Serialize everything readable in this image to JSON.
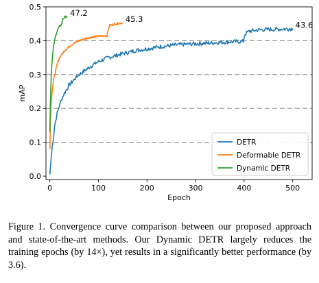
{
  "chart_data": {
    "type": "line",
    "xlabel": "Epoch",
    "ylabel": "mAP",
    "xlim": [
      -8,
      540
    ],
    "ylim": [
      -0.01,
      0.5
    ],
    "xticks": [
      0,
      100,
      200,
      300,
      400,
      500
    ],
    "yticks": [
      0.0,
      0.1,
      0.2,
      0.3,
      0.4,
      0.5
    ],
    "ytick_labels": [
      "0.0",
      "0.1",
      "0.2",
      "0.3",
      "0.4",
      "0.5"
    ],
    "grid": "horizontal dashed at 0.1, 0.2, 0.3, 0.4",
    "legend_position": "bottom-right",
    "series": [
      {
        "name": "DETR",
        "color": "#1f77b4",
        "end_label": "43.6",
        "x": [
          0,
          2,
          5,
          8,
          10,
          15,
          20,
          25,
          30,
          40,
          50,
          60,
          70,
          80,
          90,
          100,
          120,
          140,
          160,
          180,
          200,
          225,
          250,
          275,
          300,
          325,
          350,
          375,
          398,
          400,
          402,
          410,
          430,
          450,
          470,
          490,
          500
        ],
        "y": [
          0.005,
          0.04,
          0.09,
          0.12,
          0.15,
          0.185,
          0.21,
          0.23,
          0.245,
          0.27,
          0.285,
          0.3,
          0.31,
          0.32,
          0.33,
          0.338,
          0.35,
          0.358,
          0.365,
          0.372,
          0.376,
          0.382,
          0.386,
          0.389,
          0.391,
          0.393,
          0.395,
          0.397,
          0.398,
          0.41,
          0.42,
          0.428,
          0.432,
          0.433,
          0.434,
          0.435,
          0.436
        ]
      },
      {
        "name": "Deformable DETR",
        "color": "#ff7f0e",
        "end_label": "45.3",
        "x": [
          0,
          1,
          2,
          4,
          6,
          8,
          10,
          15,
          20,
          25,
          30,
          40,
          50,
          60,
          70,
          80,
          90,
          100,
          110,
          118,
          120,
          123,
          130,
          140,
          150
        ],
        "y": [
          0.08,
          0.15,
          0.2,
          0.24,
          0.265,
          0.285,
          0.3,
          0.33,
          0.35,
          0.36,
          0.37,
          0.383,
          0.393,
          0.4,
          0.405,
          0.409,
          0.411,
          0.413,
          0.414,
          0.415,
          0.43,
          0.445,
          0.448,
          0.451,
          0.453
        ]
      },
      {
        "name": "Dynamic DETR",
        "color": "#2ca02c",
        "end_label": "47.2",
        "x": [
          0,
          1,
          2,
          3,
          4,
          6,
          8,
          10,
          12,
          14,
          16,
          18,
          20,
          22,
          24,
          25,
          26,
          28,
          30,
          33,
          36
        ],
        "y": [
          0.13,
          0.21,
          0.26,
          0.3,
          0.33,
          0.36,
          0.385,
          0.4,
          0.415,
          0.425,
          0.432,
          0.438,
          0.442,
          0.445,
          0.448,
          0.455,
          0.463,
          0.466,
          0.469,
          0.471,
          0.472
        ]
      }
    ]
  },
  "caption": "Figure 1. Convergence curve comparison between our proposed approach and state-of-the-art methods. Our Dynamic DETR largely reduces the training epochs (by 14×), yet results in a significantly better performance (by 3.6)."
}
